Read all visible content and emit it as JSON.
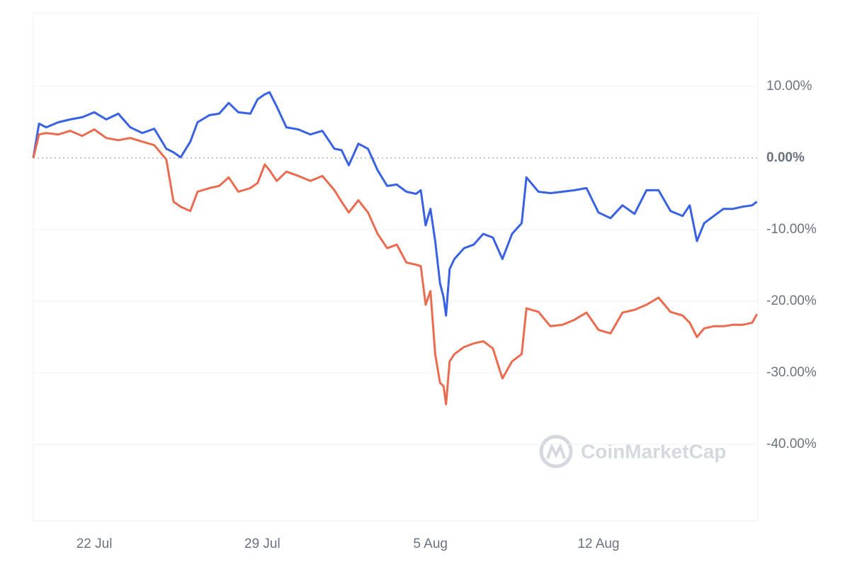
{
  "chart_data": {
    "type": "line",
    "watermark": "CoinMarketCap",
    "x": [
      19.46,
      19.7,
      20.0,
      20.5,
      21.0,
      21.5,
      22.0,
      22.5,
      23.0,
      23.5,
      24.0,
      24.5,
      25.0,
      25.3,
      25.6,
      26.0,
      26.3,
      26.8,
      27.2,
      27.6,
      28.0,
      28.5,
      28.8,
      29.1,
      29.3,
      29.6,
      30.0,
      30.5,
      31.0,
      31.5,
      32.0,
      32.3,
      32.6,
      33.0,
      33.4,
      33.8,
      34.2,
      34.6,
      35.0,
      35.4,
      35.6,
      35.8,
      36.0,
      36.2,
      36.4,
      36.55,
      36.65,
      36.8,
      37.0,
      37.4,
      37.8,
      38.2,
      38.6,
      39.0,
      39.4,
      39.8,
      40.0,
      40.5,
      41.0,
      41.5,
      42.0,
      42.5,
      43.0,
      43.5,
      44.0,
      44.5,
      45.0,
      45.5,
      46.0,
      46.5,
      46.8,
      47.1,
      47.4,
      47.8,
      48.2,
      48.6,
      49.0,
      49.4,
      49.6
    ],
    "series": [
      {
        "color": "#3861e3",
        "values": [
          0,
          4.8,
          4.3,
          5.0,
          5.4,
          5.7,
          6.4,
          5.4,
          6.2,
          4.3,
          3.5,
          4.1,
          1.3,
          0.8,
          0.1,
          2.3,
          5.0,
          6.0,
          6.2,
          7.7,
          6.4,
          6.2,
          8.2,
          8.9,
          9.2,
          7.2,
          4.3,
          4.0,
          3.3,
          3.8,
          1.3,
          1.1,
          -1.0,
          2.0,
          1.3,
          -1.7,
          -3.9,
          -3.7,
          -4.7,
          -5.0,
          -4.5,
          -9.4,
          -7.1,
          -11.6,
          -17.5,
          -19.5,
          -22.0,
          -15.5,
          -14.1,
          -12.6,
          -12.1,
          -10.6,
          -11.1,
          -14.1,
          -10.6,
          -9.1,
          -2.7,
          -4.7,
          -4.9,
          -4.7,
          -4.5,
          -4.2,
          -7.6,
          -8.4,
          -6.6,
          -7.8,
          -4.5,
          -4.5,
          -7.4,
          -8.1,
          -6.6,
          -11.6,
          -9.1,
          -8.1,
          -7.1,
          -7.1,
          -6.8,
          -6.6,
          -6.1
        ]
      },
      {
        "color": "#ea6b50",
        "values": [
          0,
          3.3,
          3.5,
          3.3,
          3.8,
          3.1,
          4.0,
          2.8,
          2.5,
          2.8,
          2.3,
          1.8,
          -0.2,
          -6.1,
          -6.8,
          -7.4,
          -4.7,
          -4.2,
          -3.9,
          -2.7,
          -4.7,
          -4.2,
          -3.5,
          -0.9,
          -1.7,
          -3.2,
          -1.9,
          -2.5,
          -3.2,
          -2.5,
          -4.5,
          -6.1,
          -7.6,
          -5.9,
          -7.6,
          -10.6,
          -12.6,
          -12.1,
          -14.6,
          -14.9,
          -15.1,
          -20.5,
          -18.6,
          -27.4,
          -31.4,
          -31.9,
          -34.4,
          -28.4,
          -27.4,
          -26.4,
          -25.9,
          -25.6,
          -26.6,
          -30.8,
          -28.4,
          -27.4,
          -21.0,
          -21.5,
          -23.5,
          -23.3,
          -22.6,
          -21.6,
          -24.0,
          -24.5,
          -21.6,
          -21.2,
          -20.5,
          -19.5,
          -21.5,
          -22.0,
          -23.0,
          -25.0,
          -23.8,
          -23.5,
          -23.5,
          -23.3,
          -23.3,
          -23.0,
          -21.8
        ]
      }
    ],
    "xlim": [
      19.46,
      49.64
    ],
    "xticks": [
      {
        "value": 22,
        "label": "22 Jul"
      },
      {
        "value": 29,
        "label": "29 Jul"
      },
      {
        "value": 36,
        "label": "5 Aug"
      },
      {
        "value": 43,
        "label": "12 Aug"
      }
    ],
    "ylim": [
      -50.7,
      20.3
    ],
    "yticks": [
      {
        "value": 10,
        "label": "10.00%"
      },
      {
        "value": 0,
        "label": "0.00%"
      },
      {
        "value": -10,
        "label": "-10.00%"
      },
      {
        "value": -20,
        "label": "-20.00%"
      },
      {
        "value": -30,
        "label": "-30.00%"
      },
      {
        "value": -40,
        "label": "-40.00%"
      }
    ],
    "grid": true
  }
}
